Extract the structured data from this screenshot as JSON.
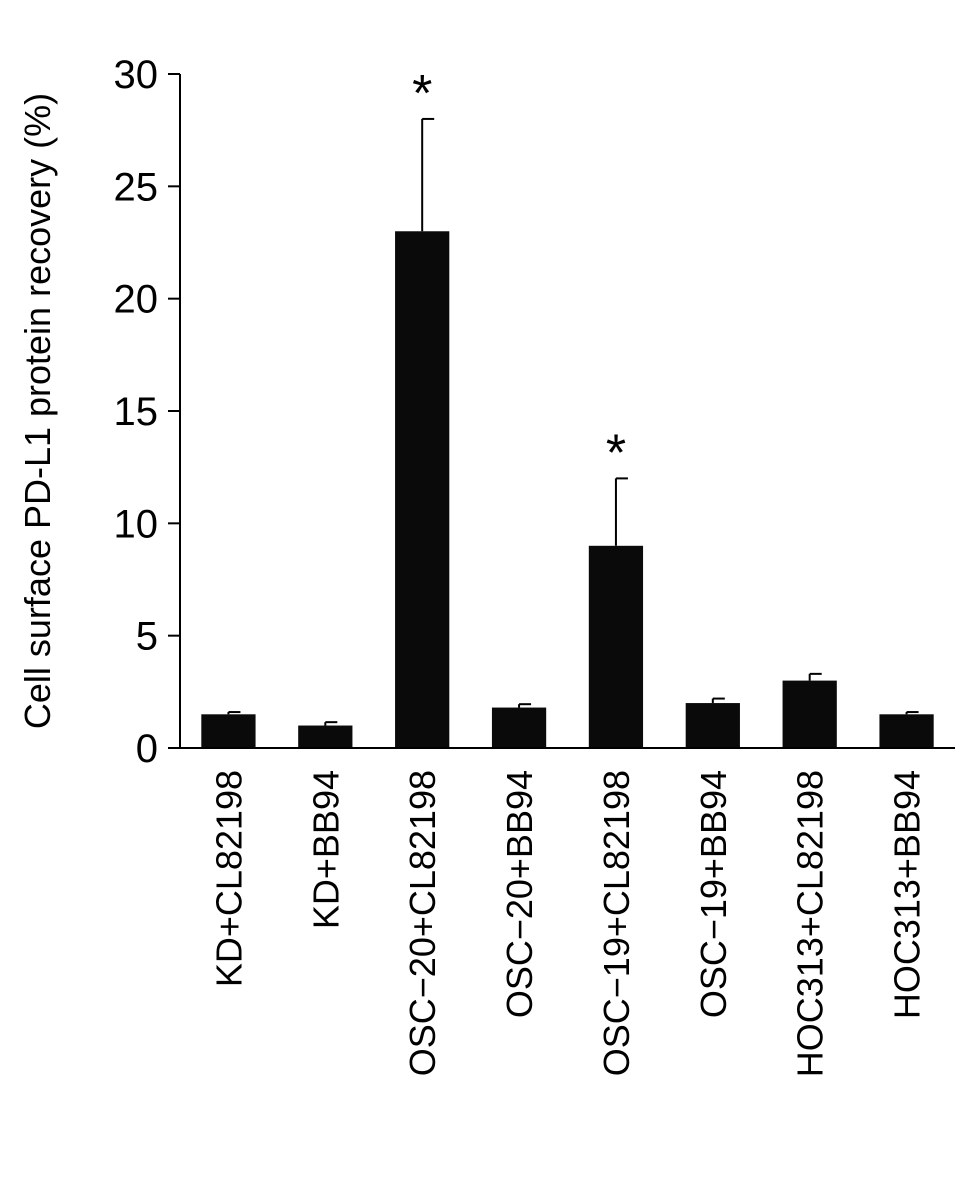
{
  "chart_data": {
    "type": "bar",
    "title": "",
    "xlabel": "",
    "ylabel": "Cell surface PD-L1 protein recovery (%)",
    "ylim": [
      0,
      30
    ],
    "yticks": [
      0,
      5,
      10,
      15,
      20,
      25,
      30
    ],
    "ytick_labels": [
      "0",
      "5",
      "10",
      "15",
      "20",
      "25",
      "30"
    ],
    "categories": [
      "KD+CL82198",
      "KD+BB94",
      "OSC−20+CL82198",
      "OSC−20+BB94",
      "OSC−19+CL82198",
      "OSC−19+BB94",
      "HOC313+CL82198",
      "HOC313+BB94"
    ],
    "values": [
      1.5,
      1.0,
      23.0,
      1.8,
      9.0,
      2.0,
      3.0,
      1.5
    ],
    "errors": [
      0.1,
      0.15,
      5.0,
      0.15,
      3.0,
      0.2,
      0.3,
      0.1
    ],
    "annotations": [
      "",
      "",
      "*",
      "",
      "*",
      "",
      "",
      ""
    ],
    "grid": false,
    "legend": "none",
    "bar_color": "#0a0a0a"
  }
}
